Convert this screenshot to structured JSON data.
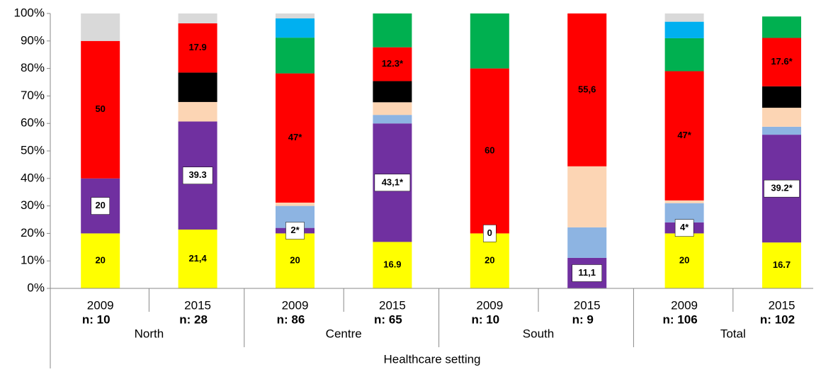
{
  "chart_data": {
    "type": "stacked_bar",
    "categories": [
      "2009",
      "2015",
      "2009",
      "2015",
      "2009",
      "2015",
      "2009",
      "2015"
    ],
    "n_labels": [
      "n: 10",
      "n: 28",
      "n: 86",
      "n: 65",
      "n: 10",
      "n: 9",
      "n: 106",
      "n: 102"
    ],
    "groups": [
      "North",
      "Centre",
      "South",
      "Total"
    ],
    "x_label": "Healthcare setting",
    "ylim": [
      0,
      100
    ],
    "yticks": [
      {
        "value": 0,
        "label": "0%"
      },
      {
        "value": 10,
        "label": "10%"
      },
      {
        "value": 20,
        "label": "20%"
      },
      {
        "value": 30,
        "label": "30%"
      },
      {
        "value": 40,
        "label": "40%"
      },
      {
        "value": 50,
        "label": "50%"
      },
      {
        "value": 60,
        "label": "60%"
      },
      {
        "value": 70,
        "label": "70%"
      },
      {
        "value": 80,
        "label": "80%"
      },
      {
        "value": 90,
        "label": "90%"
      },
      {
        "value": 100,
        "label": "100%"
      }
    ],
    "grid": false,
    "series": [
      {
        "color": "#ffff00",
        "values": [
          20,
          21.4,
          20,
          16.9,
          20,
          0,
          20,
          16.7
        ],
        "value_labels": [
          "20",
          "21,4",
          "20",
          "16.9",
          "20",
          null,
          "20",
          "16.7"
        ]
      },
      {
        "color": "#7030a0",
        "label_box": true,
        "values": [
          20,
          39.3,
          2,
          43.1,
          0,
          11.1,
          4,
          39.2
        ],
        "value_labels": [
          "20",
          "39.3",
          "2*",
          "43,1*",
          "0",
          "11,1",
          "4*",
          "39.2*"
        ]
      },
      {
        "color": "#8db4e2",
        "values": [
          0,
          0,
          8,
          3.1,
          0,
          11.1,
          7,
          2.9
        ]
      },
      {
        "color": "#fcd5b4",
        "values": [
          0,
          7.1,
          1.2,
          4.6,
          0,
          22.2,
          1,
          6.9
        ]
      },
      {
        "color": "#000000",
        "values": [
          0,
          10.7,
          0,
          7.7,
          0,
          0,
          0,
          7.8
        ]
      },
      {
        "color": "#ff0000",
        "values": [
          50,
          17.9,
          47,
          12.3,
          60,
          55.6,
          47,
          17.6
        ],
        "value_labels": [
          "50",
          "17.9",
          "47*",
          "12.3*",
          "60",
          "55,6",
          "47*",
          "17.6*"
        ]
      },
      {
        "color": "#00b050",
        "values": [
          0,
          0,
          13,
          12.3,
          20,
          0,
          12,
          7.8
        ]
      },
      {
        "color": "#00b0f0",
        "values": [
          0,
          0,
          7,
          0,
          0,
          0,
          6,
          0
        ]
      },
      {
        "color": "#d9d9d9",
        "values": [
          10,
          3.6,
          1.8,
          0,
          0,
          0,
          3,
          0
        ]
      }
    ]
  }
}
